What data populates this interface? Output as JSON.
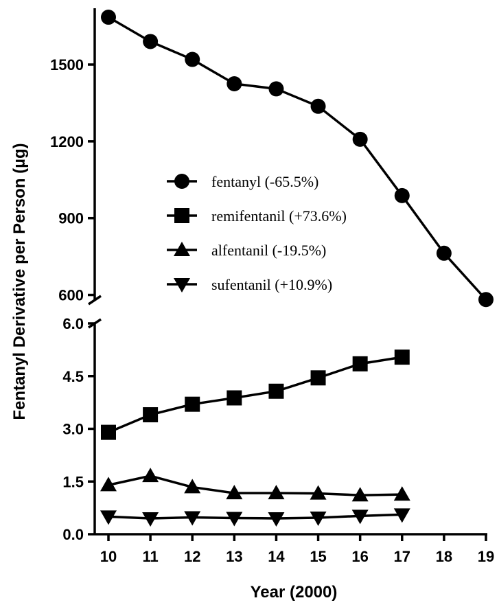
{
  "chart_data": {
    "type": "line",
    "xlabel": "Year (2000)",
    "ylabel": "Fentanyl Derivative per Person (µg)",
    "x_ticks": [
      "10",
      "11",
      "12",
      "13",
      "14",
      "15",
      "16",
      "17",
      "18",
      "19"
    ],
    "y_axis_broken": true,
    "y_segments": [
      {
        "name": "upper",
        "ylim": [
          580,
          1720
        ],
        "ticks": [
          "600",
          "900",
          "1200",
          "1500"
        ],
        "tick_values": [
          600,
          900,
          1200,
          1500
        ]
      },
      {
        "name": "lower",
        "ylim": [
          0,
          6.0
        ],
        "ticks": [
          "0.0",
          "1.5",
          "3.0",
          "4.5",
          "6.0"
        ],
        "tick_values": [
          0,
          1.5,
          3.0,
          4.5,
          6.0
        ]
      }
    ],
    "legend_position": "center",
    "series": [
      {
        "name": "fentanyl (-65.5%)",
        "marker": "circle",
        "segment": "upper",
        "x": [
          10,
          11,
          12,
          13,
          14,
          15,
          16,
          17,
          18,
          19
        ],
        "values": [
          1685,
          1590,
          1520,
          1425,
          1405,
          1337,
          1208,
          988,
          763,
          582
        ]
      },
      {
        "name": "remifentanil (+73.6%)",
        "marker": "square",
        "segment": "lower",
        "x": [
          10,
          11,
          12,
          13,
          14,
          15,
          16,
          17
        ],
        "values": [
          2.9,
          3.4,
          3.7,
          3.88,
          4.07,
          4.45,
          4.85,
          5.04
        ]
      },
      {
        "name": "alfentanil (-19.5%)",
        "marker": "triangle-up",
        "segment": "lower",
        "x": [
          10,
          11,
          12,
          13,
          14,
          15,
          16,
          17
        ],
        "values": [
          1.4,
          1.66,
          1.34,
          1.17,
          1.17,
          1.16,
          1.11,
          1.13
        ]
      },
      {
        "name": "sufentanil (+10.9%)",
        "marker": "triangle-down",
        "segment": "lower",
        "x": [
          10,
          11,
          12,
          13,
          14,
          15,
          16,
          17
        ],
        "values": [
          0.5,
          0.45,
          0.48,
          0.46,
          0.45,
          0.47,
          0.52,
          0.56
        ]
      }
    ]
  }
}
